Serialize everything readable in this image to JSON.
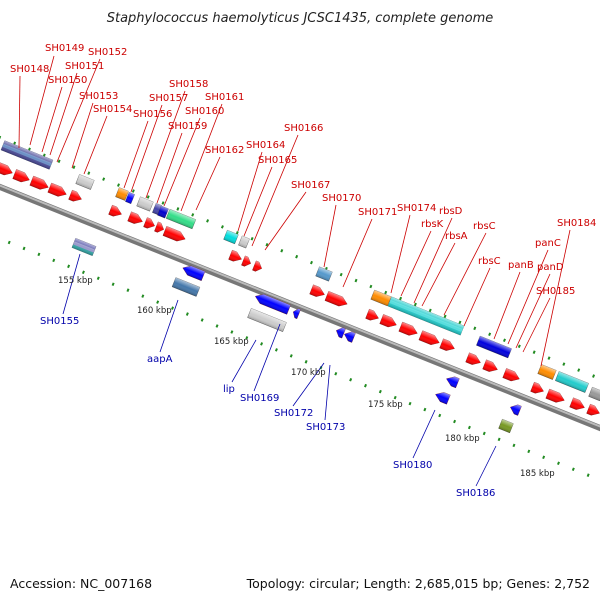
{
  "title": "Staphylococcus haemolyticus JCSC1435, complete genome",
  "footer": {
    "accession": "Accession: NC_007168",
    "topology": "Topology: circular; Length: 2,685,015 bp; Genes: 2,752"
  },
  "colors": {
    "forward_gene": "#ff0000",
    "reverse_gene": "#0000ff",
    "top_label": "#cc0000",
    "bottom_label": "#0000aa",
    "backbone": "#888888",
    "tick": "#228b22"
  },
  "kbp_marks": [
    "155 kbp",
    "160 kbp",
    "165 kbp",
    "170 kbp",
    "175 kbp",
    "180 kbp",
    "185 kbp"
  ],
  "top_labels": [
    "SH0148",
    "SH0149",
    "SH0150",
    "SH0151",
    "SH0152",
    "SH0153",
    "SH0154",
    "SH0156",
    "SH0157",
    "SH0158",
    "SH0159",
    "SH0160",
    "SH0161",
    "SH0162",
    "SH0164",
    "SH0165",
    "SH0166",
    "SH0167",
    "SH0170",
    "SH0171",
    "SH0174",
    "rbsK",
    "rbsD",
    "rbsA",
    "rbsC",
    "rbsC",
    "panB",
    "panC",
    "panD",
    "SH0184",
    "SH0185"
  ],
  "bottom_labels": [
    "SH0155",
    "aapA",
    "lip",
    "SH0169",
    "SH0172",
    "SH0173",
    "SH0180",
    "SH0186"
  ]
}
